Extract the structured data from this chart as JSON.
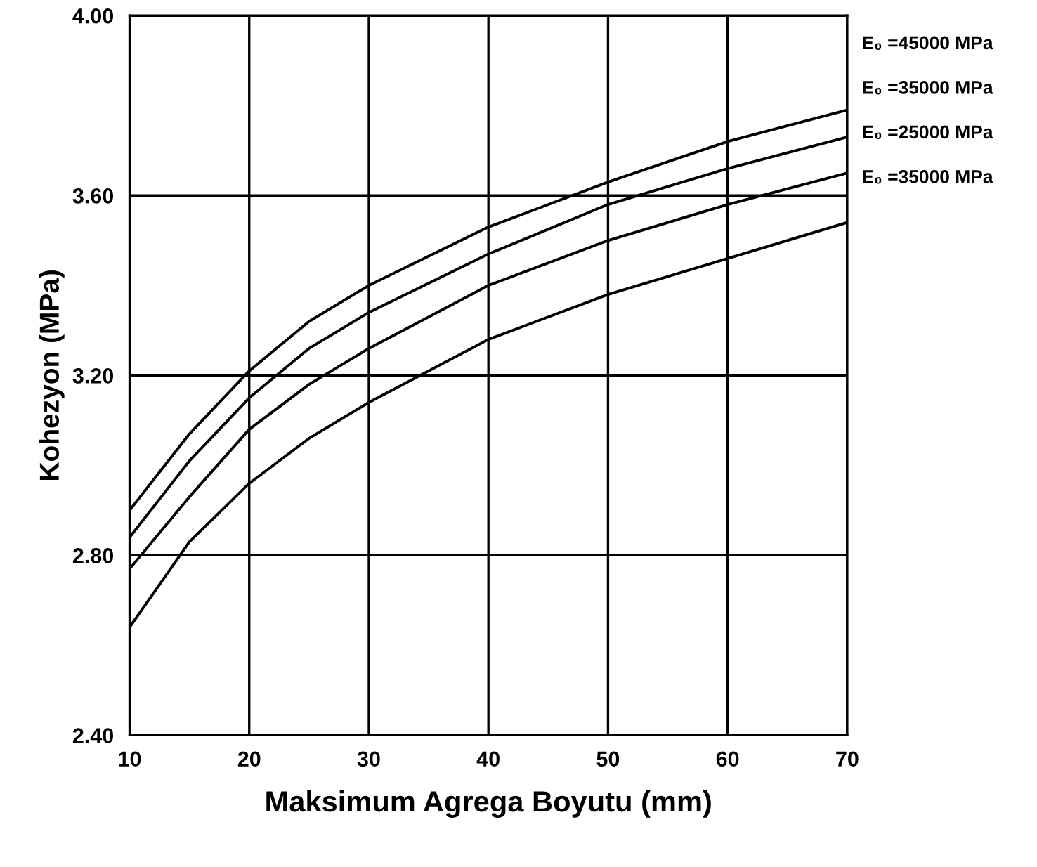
{
  "chart_data": {
    "type": "line",
    "xlabel": "Maksimum Agrega Boyutu (mm)",
    "ylabel": "Kohezyon (MPa)",
    "x": [
      10,
      15,
      20,
      25,
      30,
      40,
      50,
      60,
      70
    ],
    "series": [
      {
        "name": "E₀ =45000 MPa",
        "color": "#000000",
        "values": [
          2.9,
          3.07,
          3.21,
          3.32,
          3.4,
          3.53,
          3.63,
          3.72,
          3.79
        ]
      },
      {
        "name": "E₀ =35000 MPa",
        "color": "#000000",
        "values": [
          2.84,
          3.01,
          3.15,
          3.26,
          3.34,
          3.47,
          3.58,
          3.66,
          3.73
        ]
      },
      {
        "name": "E₀ =25000 MPa",
        "color": "#000000",
        "values": [
          2.77,
          2.93,
          3.08,
          3.18,
          3.26,
          3.4,
          3.5,
          3.58,
          3.65
        ]
      },
      {
        "name": "E₀ =35000 MPa",
        "color": "#000000",
        "values": [
          2.64,
          2.83,
          2.96,
          3.06,
          3.14,
          3.28,
          3.38,
          3.46,
          3.54
        ]
      }
    ],
    "xlim": [
      10,
      70
    ],
    "ylim": [
      2.4,
      4.0
    ],
    "xticks": [
      10,
      20,
      30,
      40,
      50,
      60,
      70
    ],
    "yticks": [
      {
        "value": 2.4,
        "label": "2.40"
      },
      {
        "value": 2.8,
        "label": "2.80"
      },
      {
        "value": 3.2,
        "label": "3.20"
      },
      {
        "value": 3.6,
        "label": "3.60"
      },
      {
        "value": 4.0,
        "label": "4.00"
      }
    ],
    "grid": true,
    "marker": "none",
    "line_style": "solid",
    "legend": false
  }
}
